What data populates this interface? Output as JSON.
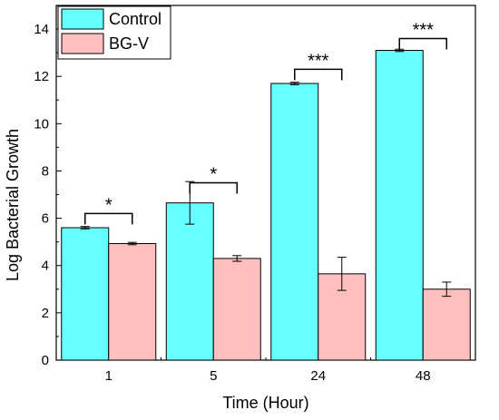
{
  "chart_data": {
    "type": "bar",
    "categories": [
      "1",
      "5",
      "24",
      "48"
    ],
    "series": [
      {
        "name": "Control",
        "color": "#66FFFF",
        "values": [
          5.6,
          6.65,
          11.7,
          13.1
        ],
        "errors": [
          0.05,
          0.9,
          0.05,
          0.05
        ]
      },
      {
        "name": "BG-V",
        "color": "#FFBFBF",
        "values": [
          4.93,
          4.3,
          3.65,
          3.0
        ],
        "errors": [
          0.05,
          0.12,
          0.7,
          0.3
        ]
      }
    ],
    "xlabel": "Time (Hour)",
    "ylabel": "Log Bacterial Growth",
    "ylim": [
      0,
      15
    ],
    "yticks": [
      "0",
      "2",
      "4",
      "6",
      "8",
      "10",
      "12",
      "14"
    ],
    "legend_position": "top-left",
    "grid": false,
    "significance": [
      {
        "category": "1",
        "label": "*",
        "bracket_y": 6.2
      },
      {
        "category": "5",
        "label": "*",
        "bracket_y": 7.5
      },
      {
        "category": "24",
        "label": "***",
        "bracket_y": 12.3
      },
      {
        "category": "48",
        "label": "***",
        "bracket_y": 13.6
      }
    ]
  }
}
